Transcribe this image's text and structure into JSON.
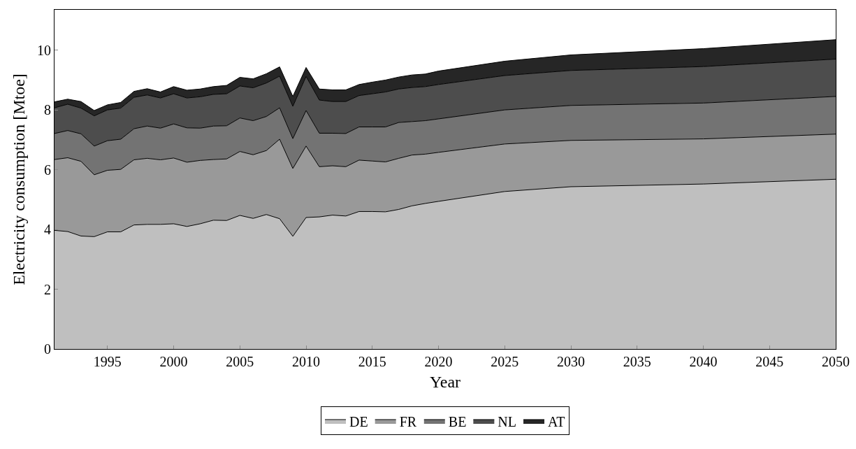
{
  "chart_data": {
    "type": "area",
    "stacked": true,
    "xlabel": "Year",
    "ylabel": "Electricity consumption [Mtoe]",
    "x": [
      1991,
      1992,
      1993,
      1994,
      1995,
      1996,
      1997,
      1998,
      1999,
      2000,
      2001,
      2002,
      2003,
      2004,
      2005,
      2006,
      2007,
      2008,
      2009,
      2010,
      2011,
      2012,
      2013,
      2014,
      2015,
      2016,
      2017,
      2018,
      2019,
      2020,
      2025,
      2030,
      2040,
      2050
    ],
    "series": [
      {
        "name": "DE",
        "color": "#bfbfbf",
        "values": [
          3.97,
          3.93,
          3.78,
          3.76,
          3.92,
          3.92,
          4.15,
          4.17,
          4.17,
          4.19,
          4.1,
          4.19,
          4.31,
          4.3,
          4.47,
          4.37,
          4.5,
          4.36,
          3.77,
          4.4,
          4.42,
          4.48,
          4.45,
          4.6,
          4.6,
          4.59,
          4.67,
          4.79,
          4.87,
          4.94,
          5.27,
          5.43,
          5.52,
          5.68
        ]
      },
      {
        "name": "FR",
        "color": "#999999",
        "values": [
          2.37,
          2.47,
          2.5,
          2.07,
          2.06,
          2.09,
          2.18,
          2.21,
          2.16,
          2.2,
          2.15,
          2.12,
          2.03,
          2.06,
          2.14,
          2.13,
          2.14,
          2.66,
          2.27,
          2.39,
          1.68,
          1.65,
          1.65,
          1.72,
          1.69,
          1.67,
          1.71,
          1.7,
          1.65,
          1.64,
          1.59,
          1.55,
          1.51,
          1.51
        ]
      },
      {
        "name": "BE",
        "color": "#737373",
        "values": [
          0.87,
          0.91,
          0.92,
          0.96,
          0.99,
          1.01,
          1.04,
          1.08,
          1.06,
          1.14,
          1.15,
          1.08,
          1.12,
          1.11,
          1.12,
          1.14,
          1.14,
          1.05,
          1.0,
          1.19,
          1.12,
          1.09,
          1.11,
          1.11,
          1.14,
          1.17,
          1.2,
          1.12,
          1.12,
          1.12,
          1.14,
          1.17,
          1.2,
          1.26
        ]
      },
      {
        "name": "NL",
        "color": "#4d4d4d",
        "values": [
          0.86,
          0.88,
          0.86,
          1.01,
          1.03,
          1.04,
          1.05,
          1.04,
          1.01,
          1.01,
          1.0,
          1.05,
          1.06,
          1.07,
          1.07,
          1.1,
          1.12,
          1.06,
          1.08,
          1.14,
          1.11,
          1.06,
          1.07,
          1.05,
          1.11,
          1.17,
          1.12,
          1.14,
          1.14,
          1.15,
          1.15,
          1.17,
          1.22,
          1.25
        ]
      },
      {
        "name": "AT",
        "color": "#262626",
        "values": [
          0.2,
          0.17,
          0.22,
          0.18,
          0.17,
          0.19,
          0.2,
          0.21,
          0.2,
          0.24,
          0.26,
          0.26,
          0.26,
          0.28,
          0.29,
          0.3,
          0.31,
          0.31,
          0.33,
          0.3,
          0.37,
          0.39,
          0.39,
          0.37,
          0.39,
          0.4,
          0.4,
          0.42,
          0.42,
          0.45,
          0.48,
          0.52,
          0.6,
          0.65
        ]
      }
    ],
    "xlim": [
      1991,
      2050
    ],
    "xticks": [
      1995,
      2000,
      2005,
      2010,
      2015,
      2020,
      2025,
      2030,
      2035,
      2040,
      2045,
      2050
    ],
    "ylim": [
      0,
      11.35
    ],
    "yticks": [
      0,
      2,
      4,
      6,
      8,
      10
    ],
    "grid": false,
    "legend": "bottom",
    "marker": "none",
    "line_style": "solid"
  }
}
